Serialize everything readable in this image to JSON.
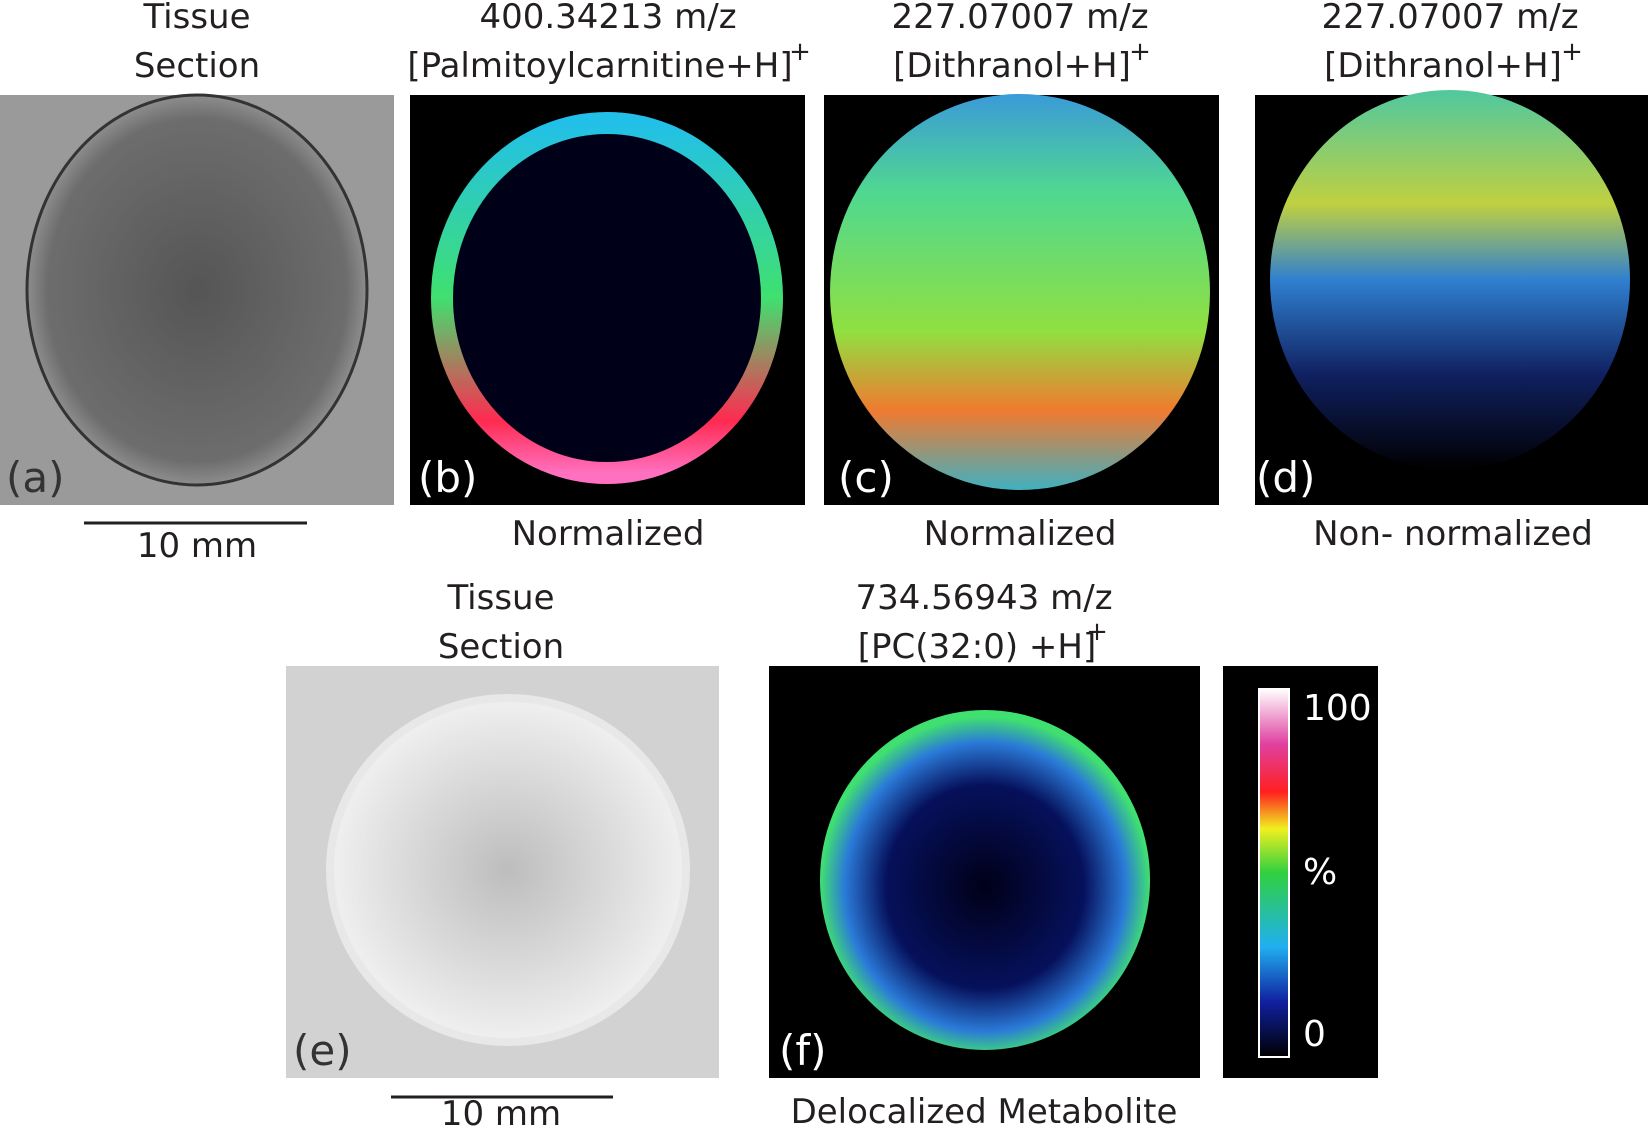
{
  "panels": [
    {
      "label": "(a)",
      "title": [
        "Tissue",
        "Section"
      ],
      "scale_bar": "10 mm"
    },
    {
      "label": "(b)",
      "title": [
        "400.34213 m/z",
        "[Palmitoylcarnitine+H]"
      ],
      "superscript": "+",
      "caption": "Normalized"
    },
    {
      "label": "(c)",
      "title": [
        "227.07007 m/z",
        "[Dithranol+H]"
      ],
      "superscript": "+",
      "caption": "Normalized"
    },
    {
      "label": "(d)",
      "title": [
        "227.07007 m/z",
        "[Dithranol+H]"
      ],
      "superscript": "+",
      "caption": "Non- normalized"
    },
    {
      "label": "(e)",
      "title": [
        "Tissue",
        "Section"
      ],
      "scale_bar": "10 mm"
    },
    {
      "label": "(f)",
      "title": [
        "734.56943 m/z",
        "[PC(32:0) +H]"
      ],
      "superscript": "+",
      "caption": "Delocalized Metabolite"
    }
  ],
  "colorbar": {
    "max": "100",
    "unit": "%",
    "min": "0"
  }
}
